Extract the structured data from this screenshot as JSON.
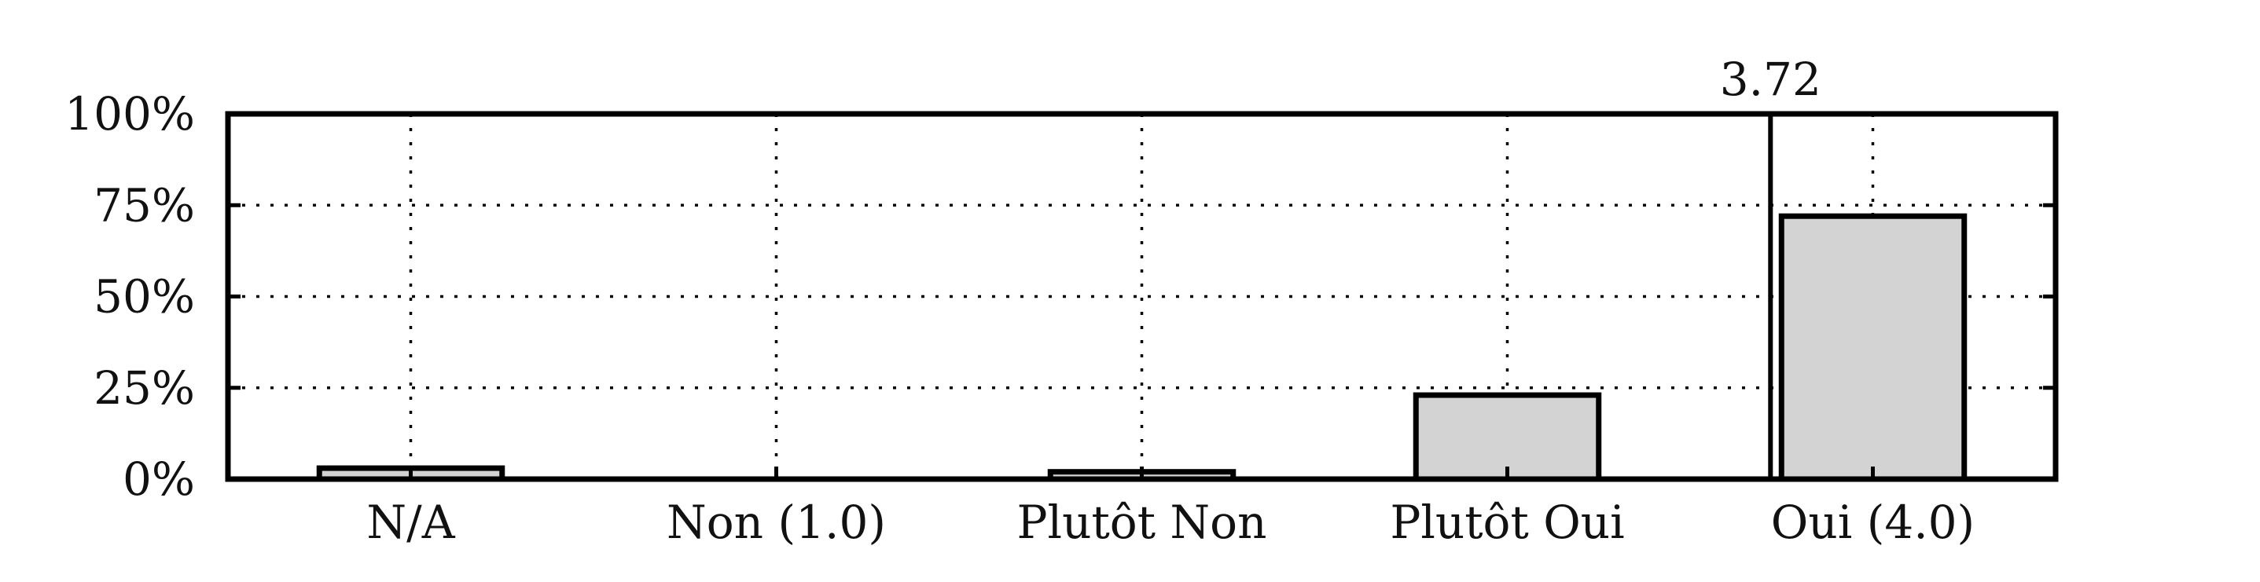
{
  "chart_data": {
    "type": "bar",
    "categories": [
      "N/A",
      "Non (1.0)",
      "Plutôt Non",
      "Plutôt Oui",
      "Oui (4.0)"
    ],
    "values": [
      3,
      0,
      2,
      23,
      72
    ],
    "ylim": [
      0,
      100
    ],
    "yticks": [
      0,
      25,
      50,
      75,
      100
    ],
    "ytick_labels": [
      "0%",
      "25%",
      "50%",
      "75%",
      "100%"
    ],
    "grid": true,
    "bar_color": "#d3d3d3",
    "mean": {
      "value": 3.72,
      "label": "3.72",
      "x_scale": [
        1.0,
        4.0
      ]
    }
  }
}
